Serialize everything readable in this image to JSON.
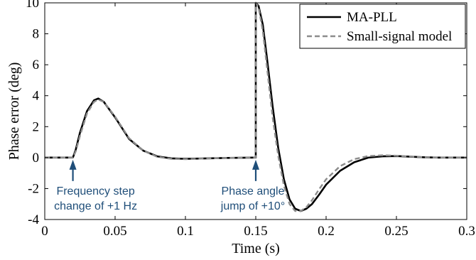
{
  "chart_data": {
    "type": "line",
    "xlabel": "Time (s)",
    "ylabel": "Phase error (deg)",
    "xlim": [
      0,
      0.3
    ],
    "ylim": [
      -4,
      10
    ],
    "xticks": [
      0,
      0.05,
      0.1,
      0.15,
      0.2,
      0.25,
      0.3
    ],
    "xtick_labels": [
      "0",
      "0.05",
      "0.1",
      "0.15",
      "0.2",
      "0.25",
      "0.3"
    ],
    "yticks": [
      -4,
      -2,
      0,
      2,
      4,
      6,
      8,
      10
    ],
    "ytick_labels": [
      "-4",
      "-2",
      "0",
      "2",
      "4",
      "6",
      "8",
      "10"
    ],
    "grid": false,
    "legend_position": "top-right",
    "series": [
      {
        "name": "MA-PLL",
        "color": "#000000",
        "style": "solid",
        "x": [
          0,
          0.02,
          0.022,
          0.025,
          0.03,
          0.035,
          0.038,
          0.042,
          0.05,
          0.06,
          0.07,
          0.08,
          0.09,
          0.1,
          0.11,
          0.13,
          0.149,
          0.15,
          0.15,
          0.152,
          0.155,
          0.158,
          0.162,
          0.166,
          0.17,
          0.174,
          0.178,
          0.182,
          0.186,
          0.19,
          0.195,
          0.2,
          0.21,
          0.22,
          0.23,
          0.24,
          0.25,
          0.26,
          0.27,
          0.28,
          0.3
        ],
        "y": [
          0,
          0,
          0.5,
          1.6,
          3.0,
          3.7,
          3.82,
          3.6,
          2.6,
          1.2,
          0.45,
          0.08,
          -0.05,
          -0.08,
          -0.06,
          -0.02,
          0,
          0,
          10,
          9.8,
          8.6,
          6.4,
          3.3,
          0.6,
          -1.4,
          -2.7,
          -3.3,
          -3.45,
          -3.3,
          -3.0,
          -2.4,
          -1.75,
          -0.85,
          -0.3,
          0.0,
          0.08,
          0.1,
          0.06,
          0.02,
          0.0,
          0.0
        ]
      },
      {
        "name": "Small-signal model",
        "color": "#8c8c8c",
        "style": "dashed",
        "x": [
          0,
          0.02,
          0.022,
          0.025,
          0.03,
          0.035,
          0.038,
          0.042,
          0.05,
          0.06,
          0.07,
          0.08,
          0.09,
          0.1,
          0.11,
          0.13,
          0.149,
          0.15,
          0.15,
          0.152,
          0.155,
          0.158,
          0.162,
          0.166,
          0.17,
          0.174,
          0.178,
          0.182,
          0.186,
          0.19,
          0.195,
          0.2,
          0.21,
          0.22,
          0.23,
          0.24,
          0.25,
          0.26,
          0.27,
          0.28,
          0.3
        ],
        "y": [
          0,
          0,
          0.4,
          1.4,
          2.85,
          3.6,
          3.75,
          3.6,
          2.65,
          1.25,
          0.45,
          0.05,
          -0.08,
          -0.1,
          -0.07,
          -0.02,
          0,
          0,
          10,
          9.7,
          8.2,
          5.8,
          2.6,
          0.1,
          -1.8,
          -3.0,
          -3.45,
          -3.45,
          -3.2,
          -2.75,
          -2.05,
          -1.4,
          -0.55,
          -0.1,
          0.1,
          0.15,
          0.12,
          0.07,
          0.02,
          0.0,
          0.0
        ]
      }
    ],
    "annotations": [
      {
        "text_lines": [
          "Frequency step",
          "change of +1 Hz"
        ],
        "x": 0.02,
        "color": "#1f4e79"
      },
      {
        "text_lines": [
          "Phase angle",
          "jump of +10°"
        ],
        "x": 0.15,
        "color": "#1f4e79"
      }
    ]
  }
}
